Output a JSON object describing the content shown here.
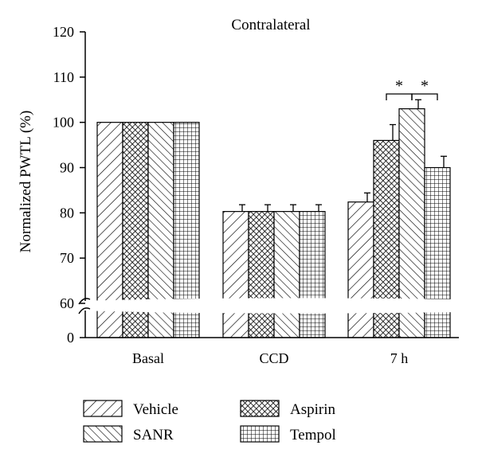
{
  "chart_data": {
    "type": "bar",
    "title": "Contralateral",
    "ylabel": "Normalized PWTL (%)",
    "xlabel": "",
    "categories": [
      "Basal",
      "CCD",
      "7 h"
    ],
    "series": [
      {
        "name": "Vehicle",
        "pattern": "diag-right",
        "values": [
          100,
          80.3,
          82.4
        ],
        "errors": [
          0,
          1.5,
          2.0
        ]
      },
      {
        "name": "Aspirin",
        "pattern": "crosshatch",
        "values": [
          100,
          80.3,
          96.0
        ],
        "errors": [
          0,
          1.5,
          3.5
        ]
      },
      {
        "name": "SANR",
        "pattern": "diag-left",
        "values": [
          100,
          80.3,
          103.0
        ],
        "errors": [
          0,
          1.5,
          2.0
        ]
      },
      {
        "name": "Tempol",
        "pattern": "grid",
        "values": [
          100,
          80.3,
          90.0
        ],
        "errors": [
          0,
          1.5,
          2.5
        ]
      }
    ],
    "ylim": [
      0,
      120
    ],
    "axis_break": [
      0,
      60
    ],
    "yticks": [
      "0",
      "60",
      "70",
      "80",
      "90",
      "100",
      "110",
      "120"
    ],
    "annotations": [
      {
        "text": "*",
        "category": "7 h",
        "between": [
          "Aspirin",
          "SANR"
        ]
      },
      {
        "text": "*",
        "category": "7 h",
        "between": [
          "SANR",
          "Tempol"
        ]
      }
    ],
    "legend_position": "bottom",
    "legend_order": [
      "Vehicle",
      "Aspirin",
      "SANR",
      "Tempol"
    ]
  }
}
